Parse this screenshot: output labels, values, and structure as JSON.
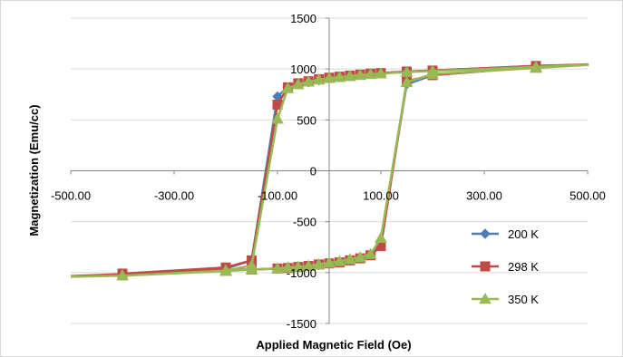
{
  "chart_data": {
    "type": "line",
    "title": "",
    "xlabel": "Applied Magnetic Field (Oe)",
    "ylabel": "Magnetization (Emu/cc)",
    "xlim": [
      -500,
      500
    ],
    "ylim": [
      -1500,
      1500
    ],
    "x_ticks": [
      -500,
      -300,
      -100,
      100,
      300,
      500
    ],
    "x_tick_labels": [
      "-500.00",
      "-300.00",
      "-100.00",
      "100.00",
      "300.00",
      "500.00"
    ],
    "y_ticks": [
      -1500,
      -1000,
      -500,
      0,
      500,
      1000,
      1500
    ],
    "y_tick_labels": [
      "-1500",
      "-1000",
      "-500",
      "0",
      "500",
      "1000",
      "1500"
    ],
    "grid": "horizontal",
    "legend_position": "right",
    "series": [
      {
        "name": "200 K",
        "color": "#4a7ebb",
        "marker": "diamond",
        "x": [
          -400,
          -200,
          -150,
          -100,
          -80,
          -60,
          -40,
          -20,
          0,
          20,
          40,
          60,
          80,
          100,
          150,
          200,
          400,
          500,
          400,
          200,
          150,
          100,
          80,
          60,
          40,
          20,
          0,
          -20,
          -40,
          -60,
          -80,
          -100,
          -150,
          -200,
          -400,
          -500
        ],
        "y": [
          -1020,
          -960,
          -880,
          730,
          820,
          850,
          870,
          890,
          910,
          920,
          930,
          945,
          955,
          960,
          975,
          985,
          1030,
          1040,
          1020,
          940,
          850,
          -690,
          -830,
          -860,
          -880,
          -900,
          -910,
          -925,
          -935,
          -945,
          -955,
          -960,
          -970,
          -975,
          -1020,
          -1040
        ]
      },
      {
        "name": "298 K",
        "color": "#be4b48",
        "marker": "square",
        "x": [
          -400,
          -200,
          -150,
          -100,
          -80,
          -60,
          -40,
          -20,
          0,
          20,
          40,
          60,
          80,
          100,
          150,
          200,
          400,
          500,
          400,
          200,
          150,
          100,
          80,
          60,
          40,
          20,
          0,
          -20,
          -40,
          -60,
          -80,
          -100,
          -150,
          -200,
          -400,
          -500
        ],
        "y": [
          -1010,
          -950,
          -880,
          650,
          820,
          860,
          880,
          900,
          915,
          925,
          935,
          945,
          955,
          960,
          975,
          985,
          1030,
          1045,
          1020,
          940,
          880,
          -740,
          -830,
          -860,
          -880,
          -900,
          -910,
          -920,
          -935,
          -945,
          -955,
          -960,
          -970,
          -975,
          -1015,
          -1035
        ]
      },
      {
        "name": "350 K",
        "color": "#98b954",
        "marker": "triangle",
        "x": [
          -400,
          -200,
          -150,
          -100,
          -80,
          -60,
          -40,
          -20,
          0,
          20,
          40,
          60,
          80,
          100,
          150,
          200,
          400,
          500,
          400,
          200,
          150,
          100,
          80,
          60,
          40,
          20,
          0,
          -20,
          -40,
          -60,
          -80,
          -100,
          -150,
          -200,
          -400,
          -500
        ],
        "y": [
          -1030,
          -980,
          -930,
          510,
          810,
          850,
          875,
          895,
          910,
          920,
          930,
          940,
          950,
          955,
          970,
          980,
          1020,
          1040,
          1010,
          950,
          870,
          -660,
          -820,
          -850,
          -870,
          -890,
          -905,
          -920,
          -935,
          -945,
          -950,
          -960,
          -970,
          -985,
          -1030,
          -1040
        ]
      }
    ]
  }
}
